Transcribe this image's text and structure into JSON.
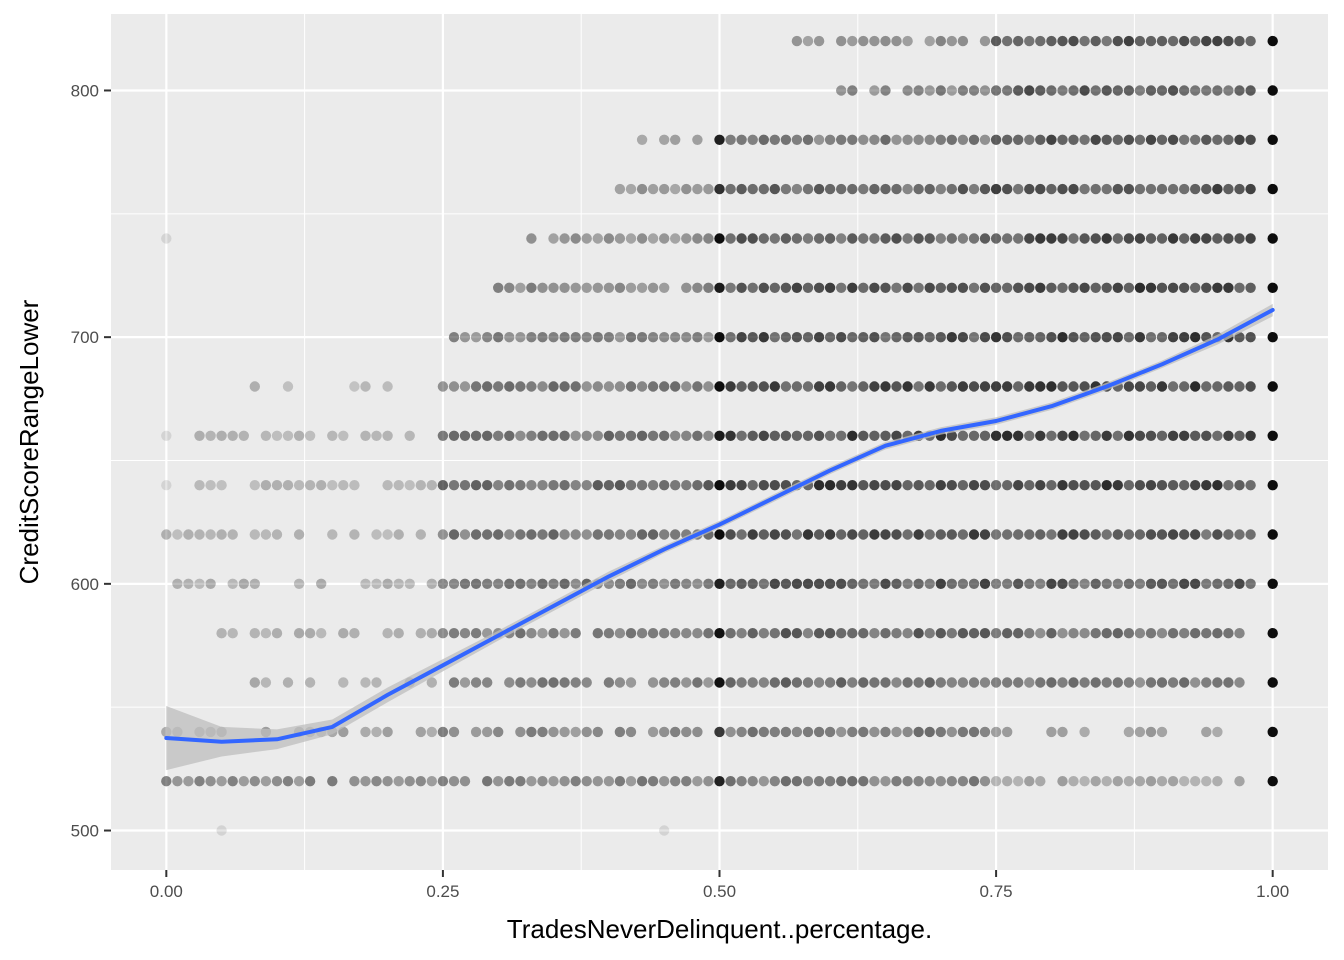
{
  "chart_data": {
    "type": "scatter",
    "title": "",
    "xlabel": "TradesNeverDelinquent..percentage.",
    "ylabel": "CreditScoreRangeLower",
    "xlim": [
      -0.05,
      1.05
    ],
    "ylim": [
      484,
      831
    ],
    "x_ticks": [
      0.0,
      0.25,
      0.5,
      0.75,
      1.0
    ],
    "x_tick_labels": [
      "0.00",
      "0.25",
      "0.50",
      "0.75",
      "1.00"
    ],
    "y_ticks": [
      500,
      600,
      700,
      800
    ],
    "y_tick_labels": [
      "500",
      "600",
      "700",
      "800"
    ],
    "grid": true,
    "point_color": "#000000",
    "smooth_color": "#3366ff",
    "band_color": "#bdbdbd",
    "panel_color": "#ebebeb",
    "point_rows": [
      {
        "y": 820,
        "x_from": 0.57,
        "x_to": 0.98,
        "density": [
          0.1,
          0.25,
          0.5,
          0.9
        ],
        "full_row_at_1": true
      },
      {
        "y": 800,
        "x_from": 0.61,
        "x_to": 0.98,
        "density": [
          0.1,
          0.3,
          0.6,
          0.9
        ],
        "full_row_at_1": true
      },
      {
        "y": 780,
        "x_from": 0.43,
        "x_to": 0.98,
        "density": [
          0.1,
          0.35,
          0.65,
          0.9
        ],
        "full_row_at_1": true
      },
      {
        "y": 760,
        "x_from": 0.41,
        "x_to": 0.98,
        "density": [
          0.12,
          0.45,
          0.8,
          0.95
        ],
        "full_row_at_1": true
      },
      {
        "y": 740,
        "x_from": 0.33,
        "x_to": 0.98,
        "density": [
          0.12,
          0.5,
          0.85,
          0.95
        ],
        "full_row_at_1": true
      },
      {
        "y": 720,
        "x_from": 0.3,
        "x_to": 0.98,
        "density": [
          0.15,
          0.55,
          0.9,
          1.0
        ],
        "full_row_at_1": true
      },
      {
        "y": 700,
        "x_from": 0.25,
        "x_to": 0.98,
        "density": [
          0.2,
          0.6,
          0.95,
          1.0
        ],
        "full_row_at_1": true
      },
      {
        "y": 680,
        "x_from": 0.08,
        "x_to": 0.98,
        "density": [
          0.2,
          0.65,
          0.95,
          1.0
        ],
        "full_row_at_1": true
      },
      {
        "y": 660,
        "x_from": 0.0,
        "x_to": 0.98,
        "density": [
          0.25,
          0.7,
          1.0,
          1.0
        ],
        "full_row_at_1": true
      },
      {
        "y": 640,
        "x_from": 0.0,
        "x_to": 0.98,
        "density": [
          0.25,
          0.75,
          1.0,
          1.0
        ],
        "full_row_at_1": true
      },
      {
        "y": 620,
        "x_from": 0.0,
        "x_to": 0.98,
        "density": [
          0.25,
          0.7,
          0.95,
          0.9
        ],
        "full_row_at_1": true
      },
      {
        "y": 600,
        "x_from": 0.0,
        "x_to": 0.98,
        "density": [
          0.3,
          0.7,
          0.9,
          0.85
        ],
        "full_row_at_1": true
      },
      {
        "y": 580,
        "x_from": 0.05,
        "x_to": 0.97,
        "density": [
          0.3,
          0.6,
          0.8,
          0.7
        ],
        "full_row_at_1": true
      },
      {
        "y": 560,
        "x_from": 0.08,
        "x_to": 0.97,
        "density": [
          0.3,
          0.6,
          0.75,
          0.65
        ],
        "full_row_at_1": true
      },
      {
        "y": 540,
        "x_from": 0.0,
        "x_to": 0.96,
        "density": [
          0.35,
          0.55,
          0.65,
          0.4
        ],
        "full_row_at_1": true
      },
      {
        "y": 520,
        "x_from": 0.0,
        "x_to": 0.98,
        "density": [
          0.55,
          0.6,
          0.65,
          0.35
        ],
        "full_row_at_1": true
      },
      {
        "y": 500,
        "x_from": 0.05,
        "x_to": 0.45,
        "density": [
          0.0,
          0.0,
          0.0,
          0.0
        ],
        "full_row_at_1": false
      }
    ],
    "isolated_points": [
      {
        "x": 0.0,
        "y": 740
      },
      {
        "x": 0.0,
        "y": 660
      },
      {
        "x": 0.0,
        "y": 640
      },
      {
        "x": 0.05,
        "y": 500
      },
      {
        "x": 0.45,
        "y": 500
      },
      {
        "x": 0.08,
        "y": 680
      }
    ],
    "smooth_curve": {
      "x": [
        0.0,
        0.05,
        0.1,
        0.15,
        0.2,
        0.25,
        0.3,
        0.35,
        0.4,
        0.45,
        0.5,
        0.55,
        0.6,
        0.65,
        0.7,
        0.75,
        0.8,
        0.85,
        0.9,
        0.95,
        1.0
      ],
      "y": [
        537.5,
        536.0,
        537.0,
        542.0,
        555.0,
        567.0,
        579.0,
        591.0,
        603.0,
        614.0,
        624.0,
        635.0,
        646.0,
        656.0,
        662.0,
        666.0,
        672.0,
        680.0,
        689.0,
        699.0,
        711.0
      ],
      "band": [
        13.0,
        6.0,
        4.0,
        3.0,
        3.0,
        2.5,
        2.0,
        2.0,
        2.0,
        1.5,
        1.5,
        1.5,
        1.5,
        1.5,
        1.5,
        1.5,
        1.5,
        1.5,
        1.5,
        2.0,
        2.5
      ]
    }
  }
}
